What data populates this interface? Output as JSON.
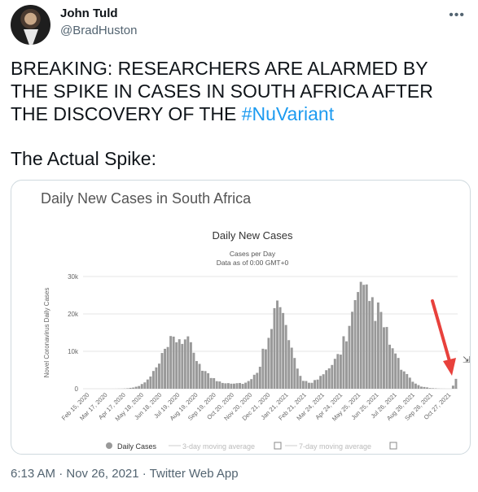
{
  "tweet": {
    "author_name": "John Tuld",
    "author_handle": "@BradHuston",
    "text_main": "BREAKING: RESEARCHERS ARE ALARMED BY THE SPIKE IN CASES IN SOUTH AFRICA AFTER THE DISCOVERY OF THE ",
    "hashtag": "#NuVariant",
    "text_second": "The Actual Spike:",
    "timestamp": "6:13 AM · Nov 26, 2021",
    "source": "Twitter Web App"
  },
  "media": {
    "title": "Daily New Cases in South Africa"
  },
  "chart_data": {
    "type": "bar",
    "title": "Daily New Cases",
    "subtitle": "Cases per Day",
    "subtitle2": "Data as of 0:00 GMT+0",
    "ylabel": "Novel Coronavirus Daily Cases",
    "ylim": [
      0,
      30000
    ],
    "ytick_labels": [
      "0",
      "10k",
      "20k",
      "30k"
    ],
    "yticks": [
      0,
      10000,
      20000,
      30000
    ],
    "xtick_labels": [
      "Feb 15, 2020",
      "Mar 17, 2020",
      "Apr 17, 2020",
      "May 18, 2020",
      "Jun 18, 2020",
      "Jul 19, 2020",
      "Aug 19, 2020",
      "Sep 19, 2020",
      "Oct 20, 2020",
      "Nov 20, 2020",
      "Dec 21, 2020",
      "Jan 21, 2021",
      "Feb 21, 2021",
      "Mar 24, 2021",
      "Apr 24, 2021",
      "May 25, 2021",
      "Jun 25, 2021",
      "Jul 26, 2021",
      "Aug 26, 2021",
      "Sep 26, 2021",
      "Oct 27, 2021"
    ],
    "legend": [
      "Daily Cases",
      "3-day moving average",
      "7-day moving average"
    ],
    "series_color": "#999999",
    "annotation_color": "#e8413c",
    "waves": [
      {
        "peak_date": "Jul 2020",
        "peak_value": 13900
      },
      {
        "peak_date": "Jan 2021",
        "peak_value": 21900
      },
      {
        "peak_date": "Jul 2021",
        "peak_value": 26500
      },
      {
        "last_date": "Nov 25, 2021",
        "last_value": 2500
      }
    ],
    "grid": true
  }
}
